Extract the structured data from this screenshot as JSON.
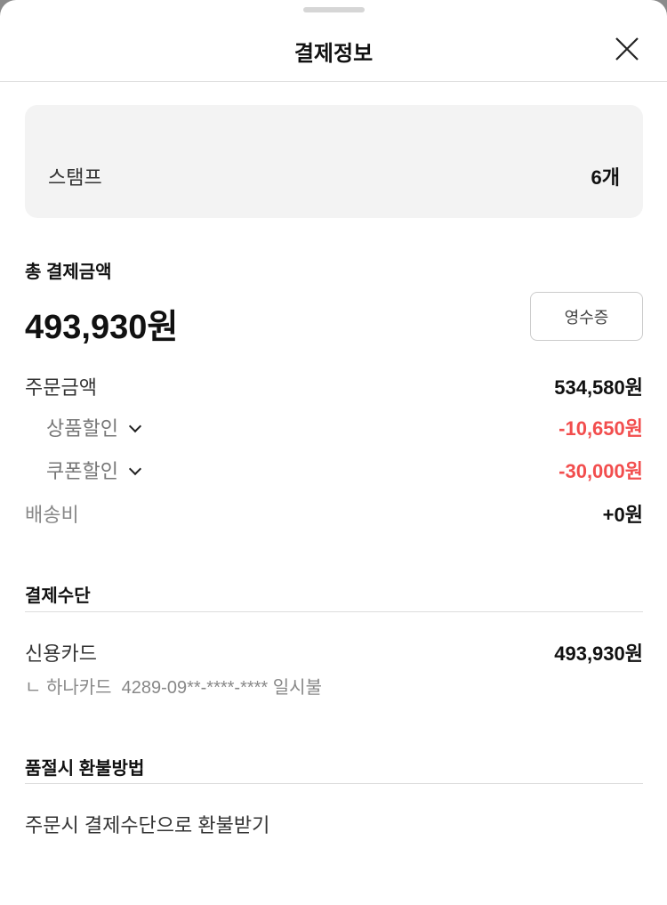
{
  "header": {
    "title": "결제정보"
  },
  "stamp": {
    "label": "스탬프",
    "value": "6개"
  },
  "total": {
    "label": "총 결제금액",
    "amount": "493,930원",
    "receipt_button": "영수증"
  },
  "breakdown": [
    {
      "label": "주문금액",
      "value": "534,580원"
    },
    {
      "label": "상품할인",
      "value": "-10,650원"
    },
    {
      "label": "쿠폰할인",
      "value": "-30,000원"
    },
    {
      "label": "배송비",
      "value": "+0원"
    }
  ],
  "payment": {
    "title": "결제수단",
    "method": "신용카드",
    "amount": "493,930원",
    "detail": "ㄴ 하나카드  4289-09**-****-**** 일시불"
  },
  "refund": {
    "title": "품절시 환불방법",
    "method": "주문시 결제수단으로 환불받기"
  },
  "colors": {
    "discount": "#f24e4e"
  }
}
